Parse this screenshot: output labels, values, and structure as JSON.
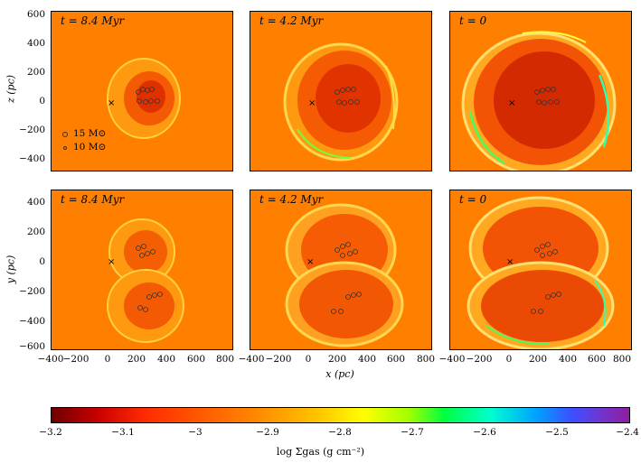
{
  "panels": [
    {
      "time_label": "t = 8.4 Myr"
    },
    {
      "time_label": "t = 4.2 Myr"
    },
    {
      "time_label": "t = 0"
    },
    {
      "time_label": "t = 8.4 Myr"
    },
    {
      "time_label": "t = 4.2 Myr"
    },
    {
      "time_label": "t = 0"
    }
  ],
  "top_row_y_ticks": [
    "600",
    "400",
    "200",
    "0",
    "−200",
    "−400"
  ],
  "bottom_row_y_ticks": [
    "400",
    "200",
    "0",
    "−200",
    "−400",
    "−600"
  ],
  "x_ticks": [
    "−400",
    "−200",
    "0",
    "200",
    "400",
    "600",
    "800"
  ],
  "top_ylabel": "z (pc)",
  "bottom_ylabel": "y (pc)",
  "xlabel": "x (pc)",
  "legend": {
    "star15": "15 M⊙",
    "star10": "10 M⊙"
  },
  "colorbar": {
    "ticks": [
      "−3.2",
      "−3.1",
      "−3",
      "−2.9",
      "−2.8",
      "−2.7",
      "−2.6",
      "−2.5",
      "−2.4"
    ],
    "label": "log Σgas (g cm⁻²)",
    "colormap": "dark-red → red → orange → yellow → green → cyan → blue → purple",
    "background_color": "#ff8000"
  }
}
